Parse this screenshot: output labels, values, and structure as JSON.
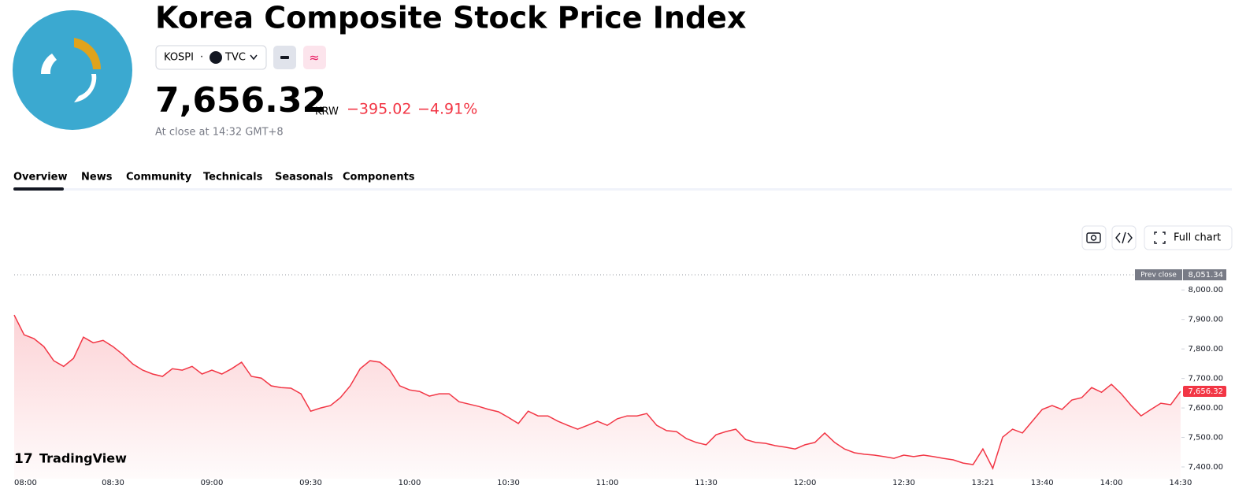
{
  "header": {
    "title": "Korea Composite Stock Price Index",
    "symbol": "KOSPI",
    "exchange": "TVC",
    "price": "7,656.32",
    "currency": "KRW",
    "change": "−395.02",
    "change_percent": "−4.91%",
    "status": "At close at 14:32 GMT+8"
  },
  "tabs": [
    "Overview",
    "News",
    "Community",
    "Technicals",
    "Seasonals",
    "Components"
  ],
  "toolbar": {
    "full_chart": "Full chart"
  },
  "watermark": "TradingView",
  "chart_data": {
    "type": "line",
    "color": "#f23645",
    "categories": [
      "08:00",
      null,
      null,
      null,
      null,
      null,
      null,
      null,
      null,
      null,
      "08:30",
      null,
      null,
      null,
      null,
      null,
      null,
      null,
      null,
      null,
      "09:00",
      null,
      null,
      null,
      null,
      null,
      null,
      null,
      null,
      null,
      "09:30",
      null,
      null,
      null,
      null,
      null,
      null,
      null,
      null,
      null,
      "10:00",
      null,
      null,
      null,
      null,
      null,
      null,
      null,
      null,
      null,
      "10:30",
      null,
      null,
      null,
      null,
      null,
      null,
      null,
      null,
      null,
      "11:00",
      null,
      null,
      null,
      null,
      null,
      null,
      null,
      null,
      null,
      "11:30",
      null,
      null,
      null,
      null,
      null,
      null,
      null,
      null,
      null,
      "12:00",
      null,
      null,
      null,
      null,
      null,
      null,
      null,
      null,
      null,
      "12:30",
      null,
      null,
      null,
      null,
      null,
      null,
      null,
      "13:21",
      null,
      null,
      null,
      null,
      null,
      "13:40",
      null,
      null,
      null,
      null,
      null,
      null,
      "14:00",
      null,
      null,
      null,
      null,
      null,
      null,
      "14:30"
    ],
    "values": [
      7915,
      7848,
      7835,
      7808,
      7760,
      7741,
      7768,
      7840,
      7821,
      7829,
      7808,
      7781,
      7749,
      7728,
      7715,
      7707,
      7733,
      7728,
      7741,
      7715,
      7728,
      7715,
      7733,
      7755,
      7707,
      7701,
      7675,
      7669,
      7667,
      7648,
      7589,
      7600,
      7608,
      7635,
      7675,
      7733,
      7760,
      7755,
      7728,
      7675,
      7661,
      7656,
      7640,
      7648,
      7648,
      7621,
      7613,
      7605,
      7595,
      7587,
      7568,
      7547,
      7589,
      7573,
      7573,
      7555,
      7541,
      7528,
      7541,
      7555,
      7541,
      7563,
      7573,
      7573,
      7581,
      7541,
      7523,
      7520,
      7496,
      7483,
      7475,
      7509,
      7520,
      7528,
      7493,
      7483,
      7480,
      7472,
      7467,
      7461,
      7475,
      7483,
      7515,
      7483,
      7461,
      7448,
      7443,
      7440,
      7435,
      7429,
      7440,
      7435,
      7440,
      7435,
      7429,
      7424,
      7413,
      7408,
      7461,
      7395,
      7501,
      7528,
      7515,
      7555,
      7595,
      7608,
      7595,
      7627,
      7635,
      7669,
      7653,
      7680,
      7648,
      7608,
      7573,
      7595,
      7616,
      7611,
      7656.32
    ],
    "value_labels": [
      null,
      null,
      null,
      null,
      null,
      null,
      null,
      null,
      null,
      null,
      null,
      null,
      null,
      null,
      null,
      null,
      null,
      null,
      null,
      null,
      null,
      null,
      null,
      null,
      null,
      null,
      null,
      null,
      null,
      null,
      null,
      null,
      null,
      null,
      null,
      null,
      null,
      null,
      null,
      null,
      null,
      null,
      null,
      null,
      null,
      null,
      null,
      null,
      null,
      null,
      null,
      null,
      null,
      null,
      null,
      null,
      null,
      null,
      null,
      null,
      null,
      null,
      null,
      null,
      null,
      null,
      null,
      null,
      null,
      null,
      null,
      null,
      null,
      null,
      null,
      null,
      null,
      null,
      null,
      null,
      null,
      null,
      null,
      null,
      null,
      null,
      null,
      null,
      null,
      null,
      null,
      null,
      null,
      null,
      null,
      null,
      null,
      null,
      null,
      null,
      null,
      null,
      null,
      null,
      null,
      null,
      null,
      null,
      null,
      null,
      null,
      null,
      null,
      null,
      null,
      null,
      null,
      null,
      "7,656.32"
    ],
    "ylim": [
      7360,
      8070
    ],
    "yticks": [
      {
        "value": 7400,
        "label": "7,400.00"
      },
      {
        "value": 7500,
        "label": "7,500.00"
      },
      {
        "value": 7600,
        "label": "7,600.00"
      },
      {
        "value": 7700,
        "label": "7,700.00"
      },
      {
        "value": 7800,
        "label": "7,800.00"
      },
      {
        "value": 7900,
        "label": "7,900.00"
      },
      {
        "value": 8000,
        "label": "8,000.00"
      }
    ],
    "prev_close": {
      "label": "Prev close",
      "value": 8051.34,
      "value_label": "8,051.34"
    }
  }
}
